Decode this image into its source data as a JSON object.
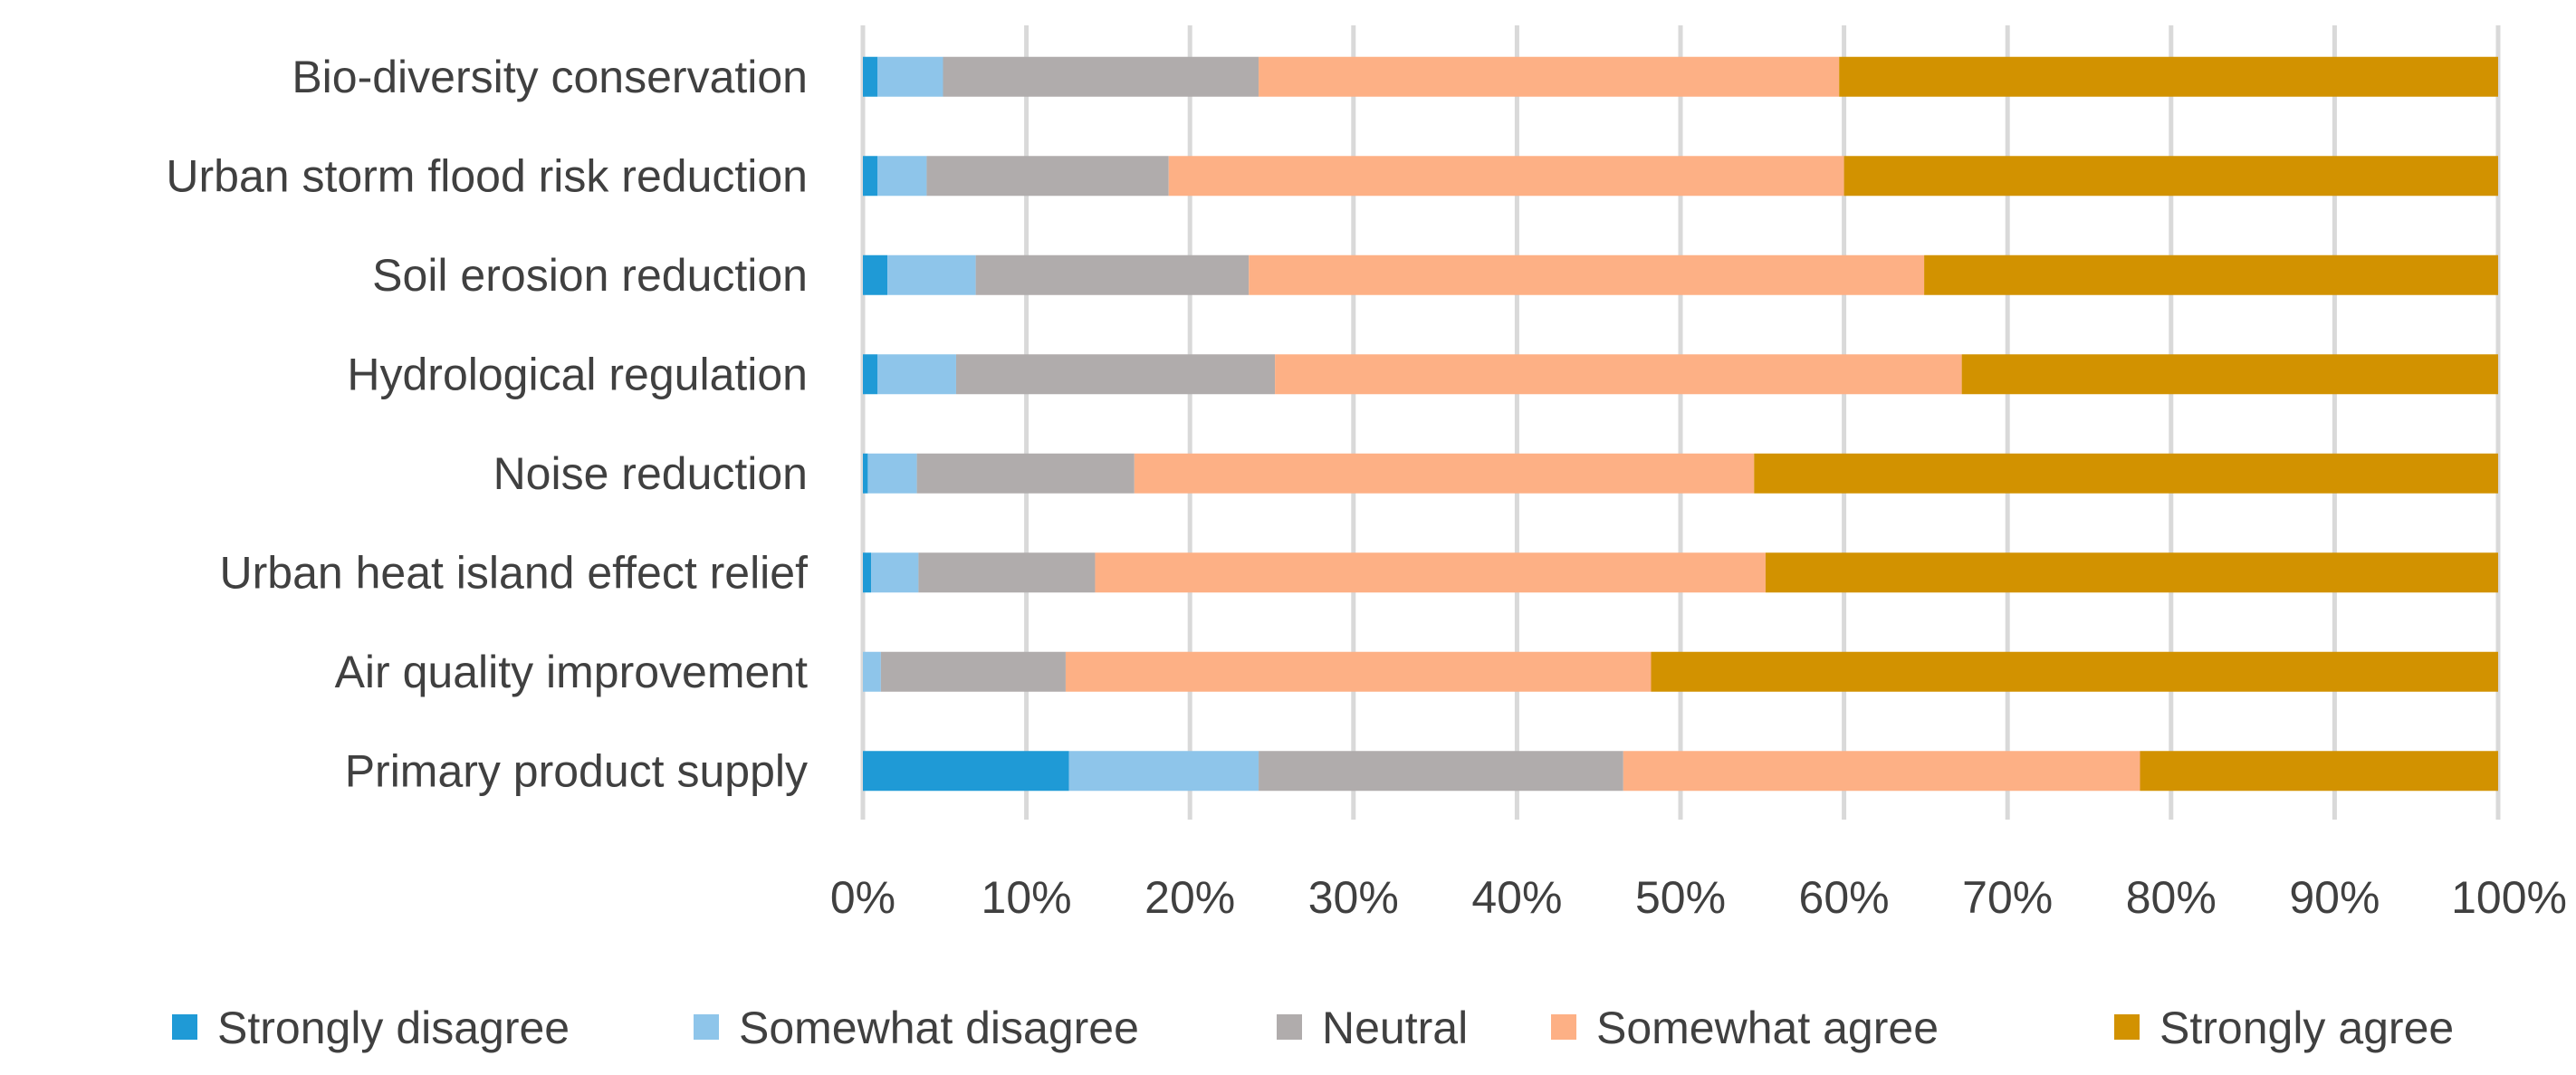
{
  "chart_data": {
    "type": "bar",
    "orientation": "horizontal",
    "stacked": "percent",
    "title": "",
    "xlabel": "",
    "ylabel": "",
    "xlim": [
      0,
      100
    ],
    "grid": true,
    "legend_position": "bottom",
    "categories": [
      "Bio-diversity conservation",
      "Urban storm flood risk reduction",
      "Soil erosion reduction",
      "Hydrological regulation",
      "Noise reduction",
      "Urban heat island effect relief",
      "Air quality improvement",
      "Primary product supply"
    ],
    "x_ticks": [
      "0%",
      "10%",
      "20%",
      "30%",
      "40%",
      "50%",
      "60%",
      "70%",
      "80%",
      "90%",
      "100%"
    ],
    "series": [
      {
        "name": "Strongly disagree",
        "color": "#1f9ad6",
        "values": [
          0.9,
          0.9,
          1.5,
          0.9,
          0.3,
          0.5,
          0.0,
          12.6
        ]
      },
      {
        "name": "Somewhat disagree",
        "color": "#8ec5ea",
        "values": [
          4.0,
          3.0,
          5.4,
          4.8,
          3.0,
          2.9,
          1.1,
          11.6
        ]
      },
      {
        "name": "Neutral",
        "color": "#b0acac",
        "values": [
          19.3,
          14.8,
          16.7,
          19.5,
          13.3,
          10.8,
          11.3,
          22.3
        ]
      },
      {
        "name": "Somewhat agree",
        "color": "#fdb085",
        "values": [
          35.5,
          41.3,
          41.3,
          42.0,
          37.9,
          41.0,
          35.8,
          31.6
        ]
      },
      {
        "name": "Strongly agree",
        "color": "#d29200",
        "values": [
          40.3,
          40.0,
          35.1,
          32.8,
          45.5,
          44.8,
          51.8,
          21.9
        ]
      }
    ]
  }
}
